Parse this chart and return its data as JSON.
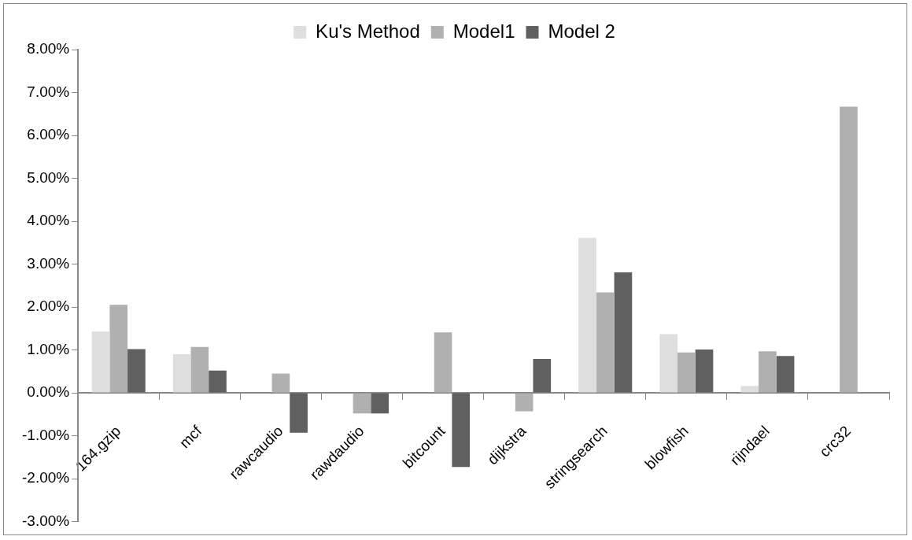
{
  "chart_data": {
    "type": "bar",
    "categories": [
      "164.gzip",
      "mcf",
      "rawcaudio",
      "rawdaudio",
      "bitcount",
      "dijkstra",
      "stringsearch",
      "blowfish",
      "rijndael",
      "crc32"
    ],
    "series": [
      {
        "name": "Ku's Method",
        "color": "#dedede",
        "values": [
          1.43,
          0.9,
          null,
          null,
          null,
          null,
          3.61,
          1.37,
          0.16,
          null
        ]
      },
      {
        "name": "Model1",
        "color": "#b0b0b0",
        "values": [
          2.05,
          1.07,
          0.45,
          -0.48,
          1.41,
          -0.43,
          2.34,
          0.94,
          0.97,
          6.67
        ]
      },
      {
        "name": "Model 2",
        "color": "#606060",
        "values": [
          1.02,
          0.52,
          -0.93,
          -0.48,
          -1.73,
          0.79,
          2.81,
          1.01,
          0.86,
          null
        ]
      }
    ],
    "ylim": [
      -3,
      8
    ],
    "yticks": [
      {
        "value": -3,
        "label": "-3.00%"
      },
      {
        "value": -2,
        "label": "-2.00%"
      },
      {
        "value": -1,
        "label": "-1.00%"
      },
      {
        "value": 0,
        "label": "0.00%"
      },
      {
        "value": 1,
        "label": "1.00%"
      },
      {
        "value": 2,
        "label": "2.00%"
      },
      {
        "value": 3,
        "label": "3.00%"
      },
      {
        "value": 4,
        "label": "4.00%"
      },
      {
        "value": 5,
        "label": "5.00%"
      },
      {
        "value": 6,
        "label": "6.00%"
      },
      {
        "value": 7,
        "label": "7.00%"
      },
      {
        "value": 8,
        "label": "8.00%"
      }
    ],
    "grid": false,
    "legend": "top"
  }
}
